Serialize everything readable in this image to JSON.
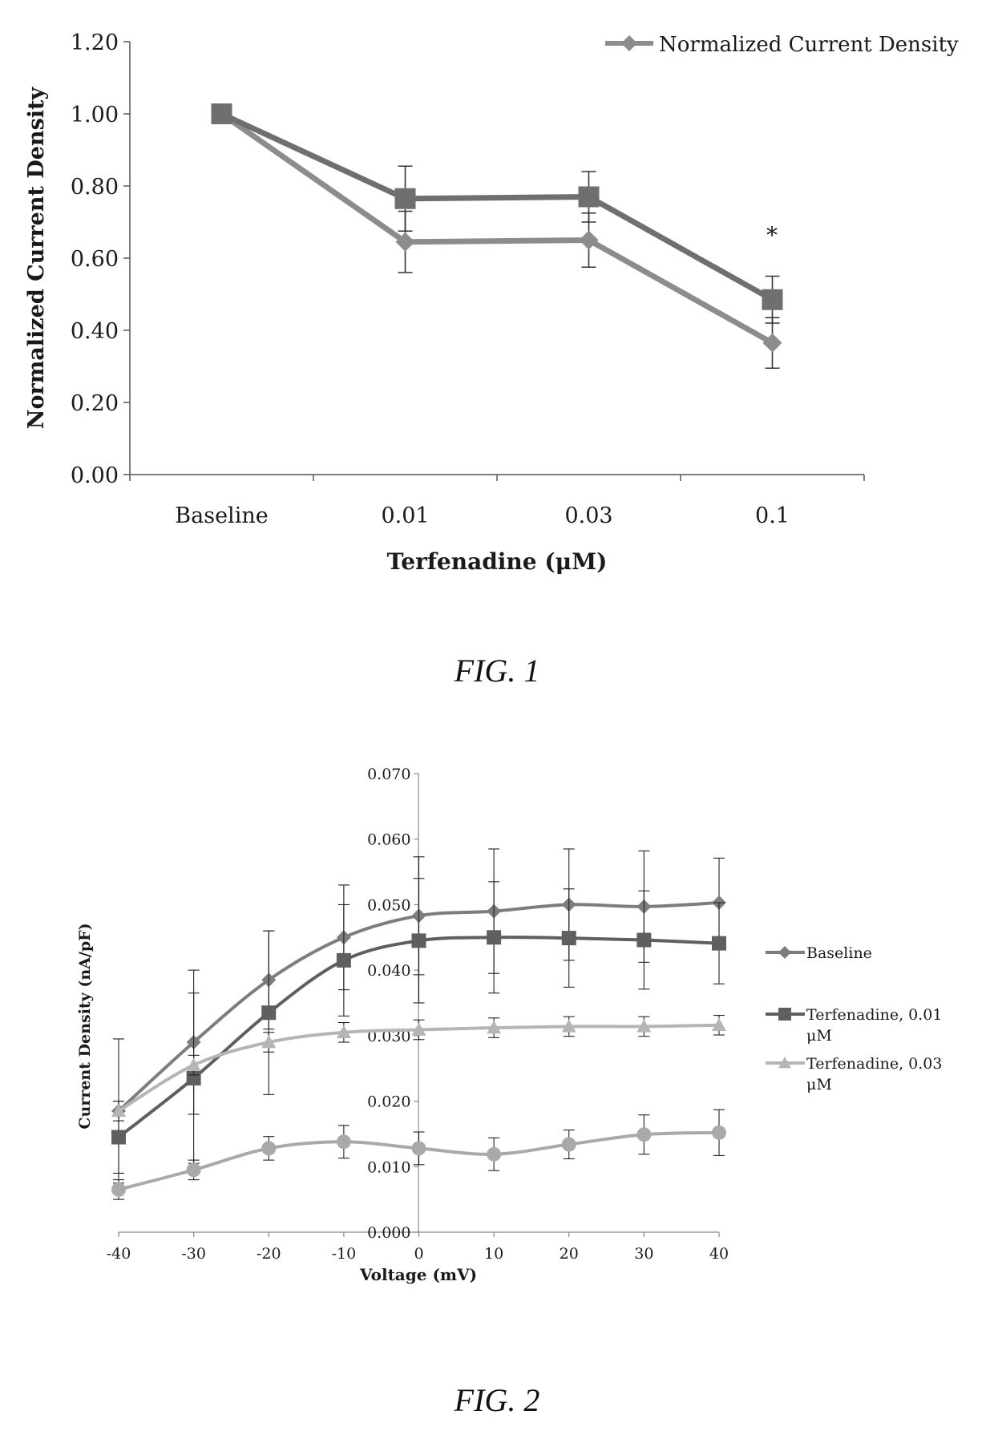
{
  "figures": [
    {
      "caption": "FIG. 1",
      "chart_data": {
        "type": "line",
        "title": "",
        "xlabel": "Terfenadine (μM)",
        "ylabel": "Normalized Current Density",
        "categories": [
          "Baseline",
          "0.01",
          "0.03",
          "0.1"
        ],
        "ylim": [
          0,
          1.2
        ],
        "yticks": [
          "0.00",
          "0.20",
          "0.40",
          "0.60",
          "0.80",
          "1.00",
          "1.20"
        ],
        "legend": [
          "Normalized Current Density"
        ],
        "legend_position": "top-right",
        "series": [
          {
            "name": "Normalized Current Density",
            "marker": "diamond",
            "color": "#8c8c8c",
            "values": [
              1.0,
              0.645,
              0.65,
              0.365
            ],
            "errors": [
              0,
              0.085,
              0.075,
              0.07
            ]
          },
          {
            "name": "",
            "marker": "square",
            "color": "#6f6f6f",
            "values": [
              1.0,
              0.765,
              0.77,
              0.485
            ],
            "errors": [
              0,
              0.09,
              0.07,
              0.065
            ]
          }
        ],
        "annotations": [
          {
            "text": "*",
            "category": "0.1",
            "y": 0.67
          }
        ]
      }
    },
    {
      "caption": "FIG. 2",
      "chart_data": {
        "type": "line",
        "title": "",
        "xlabel": "Voltage (mV)",
        "ylabel": "Current Density (nA/pF)",
        "x": [
          -40,
          -30,
          -20,
          -10,
          0,
          10,
          20,
          30,
          40
        ],
        "xlim": [
          -40,
          40
        ],
        "xticks": [
          "-40",
          "-30",
          "-20",
          "-10",
          "0",
          "10",
          "20",
          "30",
          "40"
        ],
        "ylim": [
          0,
          0.07
        ],
        "yticks": [
          "0.000",
          "0.010",
          "0.020",
          "0.030",
          "0.040",
          "0.050",
          "0.060",
          "0.070"
        ],
        "legend": [
          "Baseline",
          "Terfenadine, 0.01 μM",
          "Terfenadine, 0.03 μM"
        ],
        "legend_position": "right",
        "series": [
          {
            "name": "Baseline",
            "marker": "diamond",
            "color": "#7d7d7d",
            "values": [
              0.0185,
              0.029,
              0.0385,
              0.045,
              0.0483,
              0.049,
              0.05,
              0.0497,
              0.0503
            ],
            "errors": [
              0.011,
              0.011,
              0.0075,
              0.008,
              0.009,
              0.0095,
              0.0085,
              0.0085,
              0.0068
            ]
          },
          {
            "name": "Terfenadine, 0.01 μM",
            "marker": "square",
            "color": "#5f5f5f",
            "values": [
              0.0145,
              0.0235,
              0.0335,
              0.0415,
              0.0445,
              0.045,
              0.0449,
              0.0446,
              0.0441
            ],
            "errors": [
              0.0055,
              0.013,
              0.0125,
              0.0085,
              0.0095,
              0.0085,
              0.0075,
              0.0075,
              0.0062
            ]
          },
          {
            "name": "Terfenadine, 0.03 μM",
            "marker": "triangle",
            "color": "#b5b5b5",
            "values": [
              0.0185,
              0.0255,
              0.029,
              0.0305,
              0.0309,
              0.0312,
              0.0314,
              0.0314,
              0.0316
            ],
            "errors": [
              0.0015,
              0.0015,
              0.0015,
              0.0015,
              0.0015,
              0.0015,
              0.0015,
              0.0015,
              0.0015
            ]
          },
          {
            "name": "",
            "marker": "circle",
            "color": "#a9a9a9",
            "values": [
              0.0065,
              0.0095,
              0.0128,
              0.0138,
              0.0128,
              0.0119,
              0.0134,
              0.0149,
              0.0152
            ],
            "errors": [
              0.0015,
              0.0015,
              0.0018,
              0.0025,
              0.0025,
              0.0025,
              0.0022,
              0.003,
              0.0035
            ]
          }
        ]
      }
    }
  ]
}
